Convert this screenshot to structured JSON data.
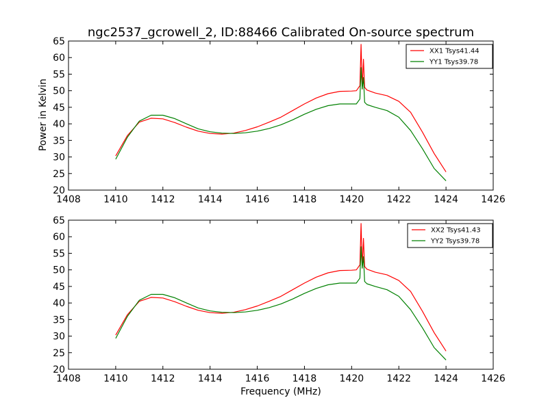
{
  "figure": {
    "title": "ngc2537_gcrowell_2, ID:88466 Calibrated On-source spectrum",
    "xlabel": "Frequency (MHz)"
  },
  "chart_data": [
    {
      "type": "line",
      "title": "",
      "xlabel": "",
      "ylabel": "Power in Kelvin",
      "xlim": [
        1408,
        1426
      ],
      "ylim": [
        20,
        65
      ],
      "xticks": [
        "1408",
        "1410",
        "1412",
        "1414",
        "1416",
        "1418",
        "1420",
        "1422",
        "1424",
        "1426"
      ],
      "yticks": [
        "20",
        "25",
        "30",
        "35",
        "40",
        "45",
        "50",
        "55",
        "60",
        "65"
      ],
      "legend": "top-right",
      "grid": false,
      "series": [
        {
          "name": "XX1 Tsys41.44",
          "color": "#ff0000",
          "x": [
            1410.0,
            1410.5,
            1411.0,
            1411.5,
            1412.0,
            1412.5,
            1413.0,
            1413.5,
            1414.0,
            1414.5,
            1415.0,
            1415.5,
            1416.0,
            1416.5,
            1417.0,
            1417.5,
            1418.0,
            1418.5,
            1419.0,
            1419.5,
            1420.0,
            1420.2,
            1420.35,
            1420.4,
            1420.45,
            1420.5,
            1420.55,
            1420.65,
            1421.0,
            1421.5,
            1422.0,
            1422.5,
            1423.0,
            1423.5,
            1424.0
          ],
          "y": [
            30.3,
            36.5,
            40.5,
            41.7,
            41.5,
            40.4,
            39.0,
            37.8,
            37.1,
            36.9,
            37.2,
            38.0,
            39.1,
            40.5,
            42.0,
            44.0,
            46.0,
            47.8,
            49.1,
            49.8,
            49.9,
            50.0,
            51.5,
            64.0,
            50.5,
            59.5,
            51.0,
            50.2,
            49.3,
            48.5,
            46.8,
            43.5,
            37.5,
            31.0,
            25.5
          ]
        },
        {
          "name": "YY1 Tsys39.78",
          "color": "#008000",
          "x": [
            1410.0,
            1410.5,
            1411.0,
            1411.5,
            1412.0,
            1412.5,
            1413.0,
            1413.5,
            1414.0,
            1414.5,
            1415.0,
            1415.5,
            1416.0,
            1416.5,
            1417.0,
            1417.5,
            1418.0,
            1418.5,
            1419.0,
            1419.5,
            1420.0,
            1420.2,
            1420.35,
            1420.4,
            1420.45,
            1420.5,
            1420.55,
            1420.65,
            1421.0,
            1421.5,
            1422.0,
            1422.5,
            1423.0,
            1423.5,
            1424.0
          ],
          "y": [
            29.3,
            36.0,
            40.8,
            42.6,
            42.6,
            41.6,
            40.0,
            38.5,
            37.6,
            37.2,
            37.1,
            37.3,
            37.8,
            38.6,
            39.7,
            41.2,
            42.9,
            44.4,
            45.5,
            46.0,
            46.0,
            46.0,
            47.5,
            57.0,
            50.5,
            54.0,
            46.5,
            45.8,
            45.0,
            44.0,
            42.0,
            38.0,
            32.5,
            26.5,
            22.8
          ]
        }
      ]
    },
    {
      "type": "line",
      "title": "",
      "xlabel": "Frequency (MHz)",
      "ylabel": "",
      "xlim": [
        1408,
        1426
      ],
      "ylim": [
        20,
        65
      ],
      "xticks": [
        "1408",
        "1410",
        "1412",
        "1414",
        "1416",
        "1418",
        "1420",
        "1422",
        "1424",
        "1426"
      ],
      "yticks": [
        "20",
        "25",
        "30",
        "35",
        "40",
        "45",
        "50",
        "55",
        "60",
        "65"
      ],
      "legend": "top-right",
      "grid": false,
      "series": [
        {
          "name": "XX2 Tsys41.43",
          "color": "#ff0000",
          "x": [
            1410.0,
            1410.5,
            1411.0,
            1411.5,
            1412.0,
            1412.5,
            1413.0,
            1413.5,
            1414.0,
            1414.5,
            1415.0,
            1415.5,
            1416.0,
            1416.5,
            1417.0,
            1417.5,
            1418.0,
            1418.5,
            1419.0,
            1419.5,
            1420.0,
            1420.2,
            1420.35,
            1420.4,
            1420.45,
            1420.5,
            1420.55,
            1420.65,
            1421.0,
            1421.5,
            1422.0,
            1422.5,
            1423.0,
            1423.5,
            1424.0
          ],
          "y": [
            30.3,
            36.5,
            40.5,
            41.7,
            41.5,
            40.4,
            39.0,
            37.8,
            37.1,
            36.9,
            37.2,
            38.0,
            39.1,
            40.5,
            42.0,
            44.0,
            46.0,
            47.8,
            49.1,
            49.8,
            49.9,
            50.0,
            51.5,
            64.0,
            50.5,
            59.5,
            51.0,
            50.2,
            49.3,
            48.5,
            46.8,
            43.5,
            37.5,
            31.0,
            25.5
          ]
        },
        {
          "name": "YY2 Tsys39.78",
          "color": "#008000",
          "x": [
            1410.0,
            1410.5,
            1411.0,
            1411.5,
            1412.0,
            1412.5,
            1413.0,
            1413.5,
            1414.0,
            1414.5,
            1415.0,
            1415.5,
            1416.0,
            1416.5,
            1417.0,
            1417.5,
            1418.0,
            1418.5,
            1419.0,
            1419.5,
            1420.0,
            1420.2,
            1420.35,
            1420.4,
            1420.45,
            1420.5,
            1420.55,
            1420.65,
            1421.0,
            1421.5,
            1422.0,
            1422.5,
            1423.0,
            1423.5,
            1424.0
          ],
          "y": [
            29.3,
            36.0,
            40.8,
            42.6,
            42.6,
            41.6,
            40.0,
            38.5,
            37.6,
            37.2,
            37.1,
            37.3,
            37.8,
            38.6,
            39.7,
            41.2,
            42.9,
            44.4,
            45.5,
            46.0,
            46.0,
            46.0,
            47.5,
            57.0,
            50.5,
            54.0,
            46.5,
            45.8,
            45.0,
            44.0,
            42.0,
            38.0,
            32.5,
            26.5,
            22.8
          ]
        }
      ]
    }
  ]
}
